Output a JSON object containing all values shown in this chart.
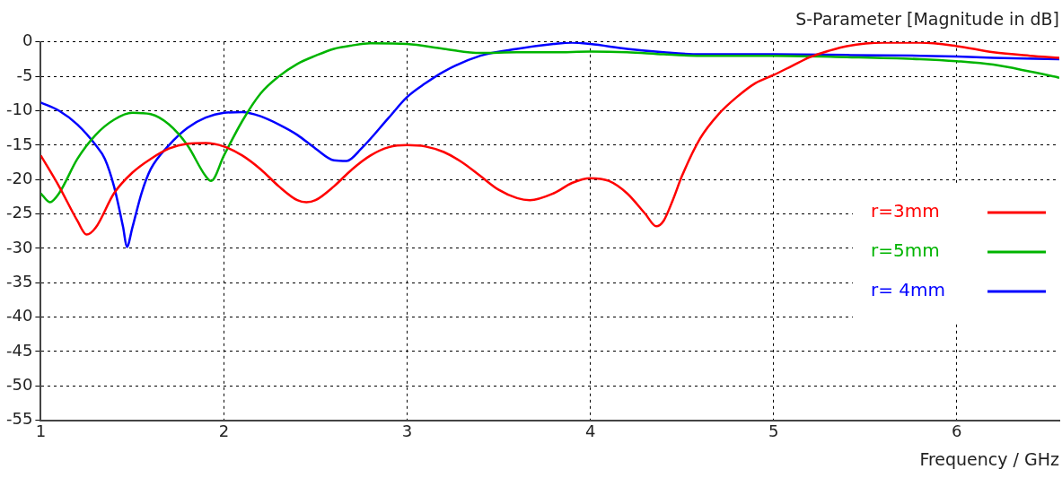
{
  "chart_data": {
    "type": "line",
    "title": "S-Parameter [Magnitude in dB]",
    "xlabel": "Frequency / GHz",
    "xlim": [
      1,
      6.56
    ],
    "xticks": [
      1,
      2,
      3,
      4,
      5,
      6
    ],
    "ylim": [
      -55,
      0
    ],
    "yticks": [
      0,
      -5,
      -10,
      -15,
      -20,
      -25,
      -30,
      -35,
      -40,
      -45,
      -50,
      -55
    ],
    "grid": true,
    "legend": "right",
    "line_style": "solid",
    "marker": "none",
    "series": [
      {
        "name": "r=3mm",
        "color": "#ff0000",
        "x": [
          1,
          1.1,
          1.2,
          1.25,
          1.3,
          1.4,
          1.5,
          1.6,
          1.7,
          1.8,
          1.9,
          2.0,
          2.1,
          2.2,
          2.3,
          2.4,
          2.45,
          2.5,
          2.6,
          2.7,
          2.8,
          2.9,
          3.0,
          3.1,
          3.2,
          3.3,
          3.4,
          3.5,
          3.6,
          3.67,
          3.8,
          3.9,
          4.0,
          4.1,
          4.2,
          4.3,
          4.36,
          4.4,
          4.45,
          4.5,
          4.6,
          4.7,
          4.8,
          4.9,
          5.0,
          5.1,
          5.2,
          5.3,
          5.4,
          5.6,
          5.8,
          6.0,
          6.2,
          6.4,
          6.56
        ],
        "values": [
          -16.5,
          -21,
          -26,
          -28,
          -27,
          -22,
          -19,
          -17,
          -15.5,
          -14.8,
          -14.7,
          -15.2,
          -16.5,
          -18.5,
          -21,
          -23,
          -23.3,
          -23,
          -21,
          -18.5,
          -16.5,
          -15.3,
          -15,
          -15.2,
          -16,
          -17.5,
          -19.5,
          -21.5,
          -22.7,
          -23,
          -22,
          -20.5,
          -19.8,
          -20.2,
          -22,
          -25,
          -26.8,
          -26,
          -23,
          -19.5,
          -14,
          -10.5,
          -8,
          -6,
          -4.8,
          -3.5,
          -2.2,
          -1.3,
          -0.6,
          -0.1,
          -0.1,
          -0.6,
          -1.5,
          -2,
          -2.3
        ]
      },
      {
        "name": "r=5mm",
        "color": "#00b400",
        "x": [
          1,
          1.05,
          1.1,
          1.2,
          1.3,
          1.4,
          1.5,
          1.6,
          1.7,
          1.8,
          1.9,
          1.93,
          2.0,
          2.1,
          2.2,
          2.3,
          2.4,
          2.5,
          2.6,
          2.7,
          2.8,
          3.0,
          3.2,
          3.4,
          3.6,
          3.8,
          4.0,
          4.2,
          4.4,
          4.6,
          5.0,
          5.4,
          5.8,
          6.0,
          6.2,
          6.4,
          6.56
        ],
        "values": [
          -22,
          -23.3,
          -22,
          -17,
          -13.5,
          -11.3,
          -10.3,
          -10.5,
          -12,
          -15,
          -19.5,
          -20.2,
          -16.5,
          -11.5,
          -7.5,
          -5,
          -3.2,
          -2,
          -1,
          -0.5,
          -0.2,
          -0.3,
          -1,
          -1.6,
          -1.5,
          -1.5,
          -1.4,
          -1.5,
          -1.8,
          -2,
          -2,
          -2.2,
          -2.5,
          -2.8,
          -3.3,
          -4.3,
          -5.2
        ]
      },
      {
        "name": "r= 4mm",
        "color": "#0000ff",
        "x": [
          1,
          1.1,
          1.2,
          1.3,
          1.35,
          1.4,
          1.45,
          1.47,
          1.5,
          1.55,
          1.6,
          1.7,
          1.8,
          1.9,
          2.0,
          2.1,
          2.2,
          2.3,
          2.4,
          2.5,
          2.6,
          2.67,
          2.75,
          2.9,
          3.0,
          3.1,
          3.2,
          3.4,
          3.6,
          3.8,
          3.9,
          4.0,
          4.2,
          4.4,
          4.6,
          5.0,
          5.4,
          5.8,
          6.0,
          6.2,
          6.56
        ],
        "values": [
          -8.8,
          -10,
          -12,
          -15,
          -17,
          -21,
          -27,
          -29.8,
          -27,
          -22,
          -18.5,
          -15,
          -12.5,
          -11,
          -10.3,
          -10.2,
          -10.8,
          -12,
          -13.5,
          -15.5,
          -17.2,
          -17.3,
          -15.5,
          -11,
          -8,
          -6,
          -4.3,
          -2,
          -1,
          -0.3,
          -0.1,
          -0.3,
          -1,
          -1.5,
          -1.8,
          -1.8,
          -1.9,
          -2,
          -2.1,
          -2.3,
          -2.5
        ]
      }
    ]
  }
}
